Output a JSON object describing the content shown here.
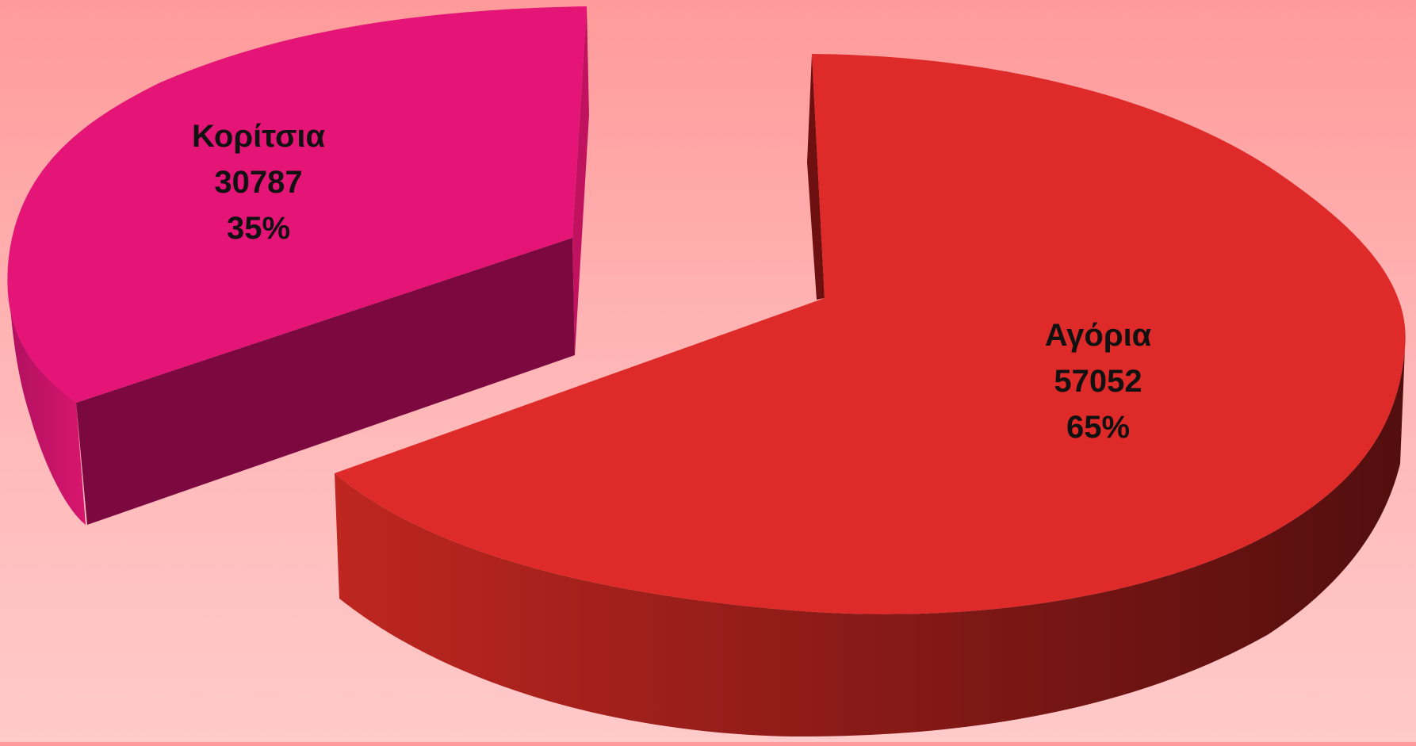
{
  "chart_data": {
    "type": "pie",
    "style": "3d-exploded",
    "slices": [
      {
        "name": "Αγόρια",
        "value": 57052,
        "percent": "65%",
        "color": "#de2a28"
      },
      {
        "name": "Κορίτσια",
        "value": 30787,
        "percent": "35%",
        "color": "#e51577"
      }
    ],
    "legend": "none"
  }
}
